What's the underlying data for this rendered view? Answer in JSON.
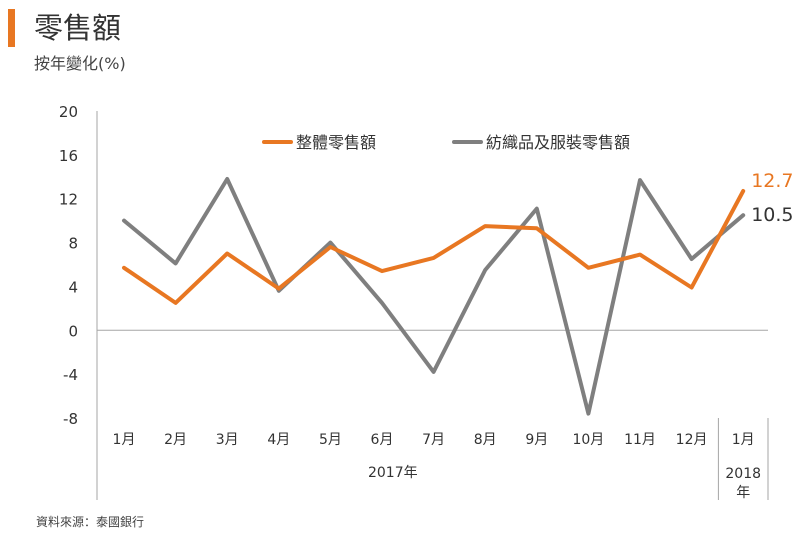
{
  "title": "零售額",
  "subtitle": "按年變化(%)",
  "source": "資料來源：泰國銀行",
  "colors": {
    "accent": "#e87722",
    "series1": "#e87722",
    "series2": "#7f7f7f",
    "axis": "#595959"
  },
  "chart_data": {
    "type": "line",
    "categories": [
      "1月",
      "2月",
      "3月",
      "4月",
      "5月",
      "6月",
      "7月",
      "8月",
      "9月",
      "10月",
      "11月",
      "12月",
      "1月"
    ],
    "year_groups": [
      {
        "label": "2017年",
        "start": 0,
        "end": 11
      },
      {
        "label": "2018\n年",
        "start": 12,
        "end": 12
      }
    ],
    "ylim": [
      -8,
      20
    ],
    "yticks": [
      -8,
      -4,
      0,
      4,
      8,
      12,
      16,
      20
    ],
    "legend_position": "top",
    "grid": false,
    "series": [
      {
        "name": "整體零售額",
        "color": "#e87722",
        "values": [
          5.7,
          2.5,
          7.0,
          3.8,
          7.6,
          5.4,
          6.6,
          9.5,
          9.3,
          5.7,
          6.9,
          3.9,
          12.7
        ],
        "end_label": "12.7"
      },
      {
        "name": "紡織品及服裝零售額",
        "color": "#7f7f7f",
        "values": [
          10.0,
          6.1,
          13.8,
          3.6,
          8.0,
          2.5,
          -3.8,
          5.5,
          11.1,
          -7.6,
          13.7,
          6.5,
          10.5
        ],
        "end_label": "10.5"
      }
    ]
  }
}
